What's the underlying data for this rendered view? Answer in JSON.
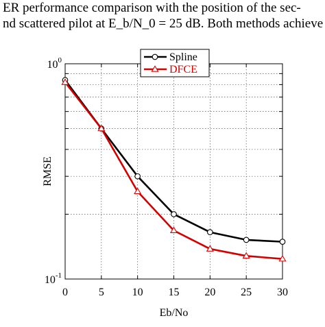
{
  "caption": {
    "line1": "ER performance comparison with the position of the sec-",
    "line2": "nd scattered pilot at E_b/N_0 = 25 dB. Both methods achieve"
  },
  "chart_data": {
    "type": "line",
    "xlabel": "Eb/No",
    "ylabel": "RMSE",
    "x": [
      0,
      5,
      10,
      15,
      20,
      25,
      30
    ],
    "xticks": [
      "0",
      "5",
      "10",
      "15",
      "20",
      "25",
      "30"
    ],
    "xlim": [
      0,
      30
    ],
    "yscale": "log",
    "ylim": [
      0.1,
      1
    ],
    "yticks": [
      {
        "base": "10",
        "exp": "0",
        "value": 1
      },
      {
        "base": "10",
        "exp": "-1",
        "value": 0.1
      }
    ],
    "grid": "dotted",
    "legend_position": "top-center",
    "series": [
      {
        "name": "Spline",
        "color": "#000000",
        "marker": "circle",
        "values": [
          0.84,
          0.5,
          0.3,
          0.2,
          0.165,
          0.152,
          0.149
        ]
      },
      {
        "name": "DFCE",
        "color": "#d40000",
        "marker": "triangle",
        "values": [
          0.82,
          0.5,
          0.255,
          0.168,
          0.138,
          0.128,
          0.124
        ]
      }
    ]
  }
}
